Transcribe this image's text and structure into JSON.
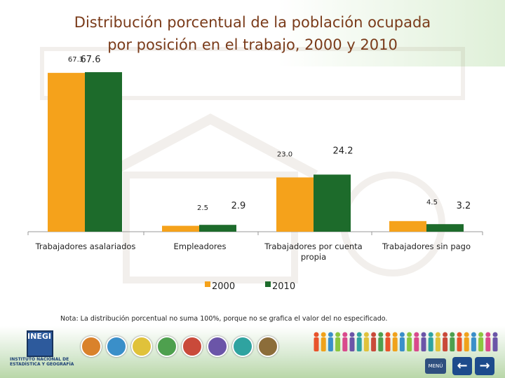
{
  "title_line1": "Distribución porcentual de la población ocupada",
  "title_line2": "por posición en el trabajo, 2000 y 2010",
  "note": "Nota: La distribución porcentual no suma 100%, porque no se grafica el valor del no especificado.",
  "logo_text": "INEGI",
  "institute_name": "INSTITUTO NACIONAL DE ESTADÍSTICA Y GEOGRAFÍA",
  "menu_label": "MENÚ",
  "prev_icon": "arrow-left-icon",
  "next_icon": "arrow-right-icon",
  "colors": {
    "series_2000": "#f5a21b",
    "series_2010": "#1d6b2b",
    "title": "#7a3b1a"
  },
  "chart_data": {
    "type": "bar",
    "title": "Distribución porcentual de la población ocupada por posición en el trabajo, 2000 y 2010",
    "categories": [
      "Trabajadores asalariados",
      "Empleadores",
      "Trabajadores por cuenta propia",
      "Trabajadores sin pago"
    ],
    "series": [
      {
        "name": "2000",
        "values": [
          67.3,
          2.5,
          23.0,
          4.5
        ],
        "labels": [
          "67.3",
          "2.5",
          "23.0",
          "4.5"
        ]
      },
      {
        "name": "2010",
        "values": [
          67.6,
          2.9,
          24.2,
          3.2
        ],
        "labels": [
          "67.6",
          "2.9",
          "24.2",
          "3.2"
        ]
      }
    ],
    "ylim": [
      0,
      70
    ],
    "grid": false,
    "legend": "bottom"
  }
}
